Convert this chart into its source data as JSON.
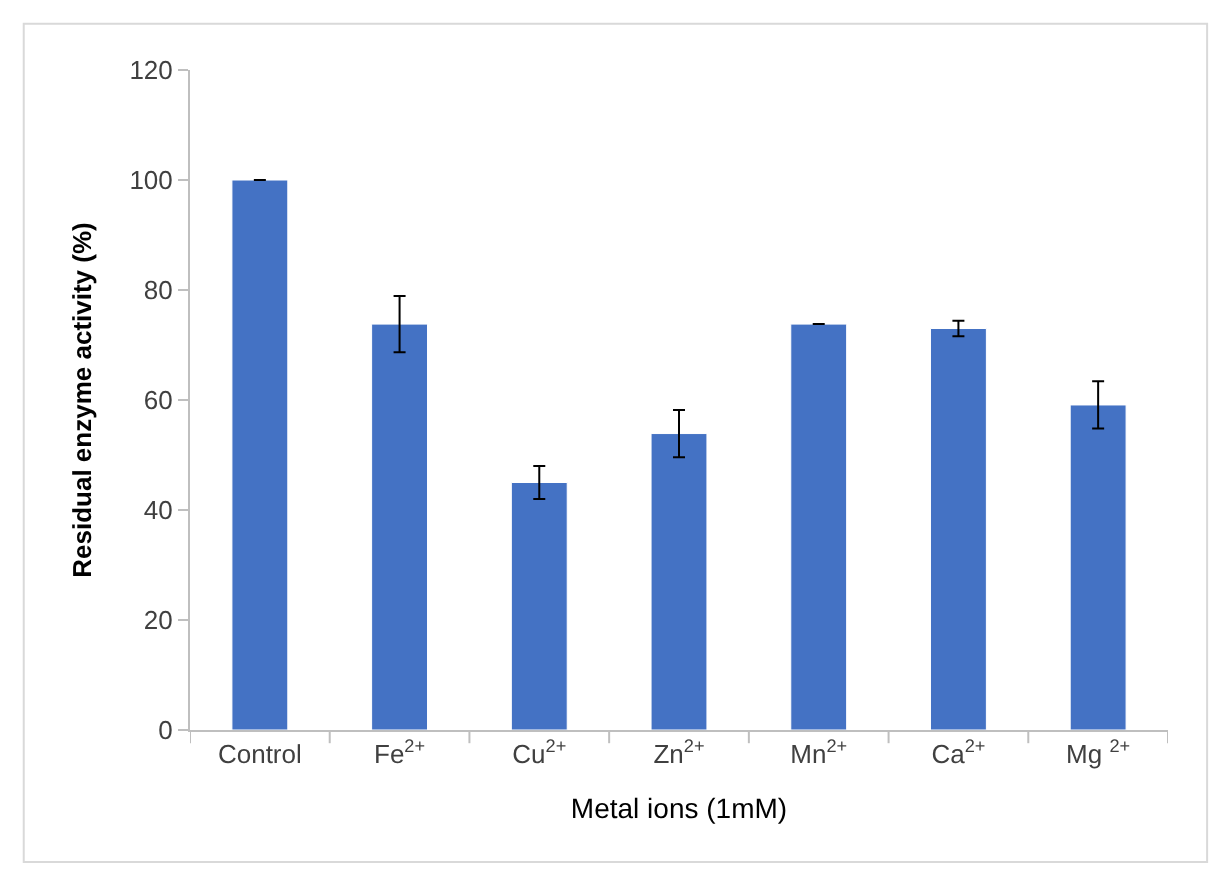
{
  "chart_data": {
    "type": "bar",
    "xlabel": "Metal ions (1mM)",
    "ylabel": "Residual enzyme activity (%)",
    "categories": [
      "Control",
      "Fe$^{2+}$",
      "Cu$^{2+}$",
      "Zn$^{2+}$",
      "Mn$^{2+}$",
      "Ca$^{2+}$",
      "Mg $^{2+}$"
    ],
    "values": [
      100,
      73.8,
      45.0,
      53.9,
      73.8,
      73.0,
      59.1
    ],
    "errors": [
      0,
      5.1,
      3.0,
      4.3,
      0,
      1.4,
      4.3
    ],
    "color": "#4472c4",
    "ylim": [
      0,
      120
    ],
    "yticks": [
      0,
      20,
      40,
      60,
      80,
      100,
      120
    ]
  }
}
